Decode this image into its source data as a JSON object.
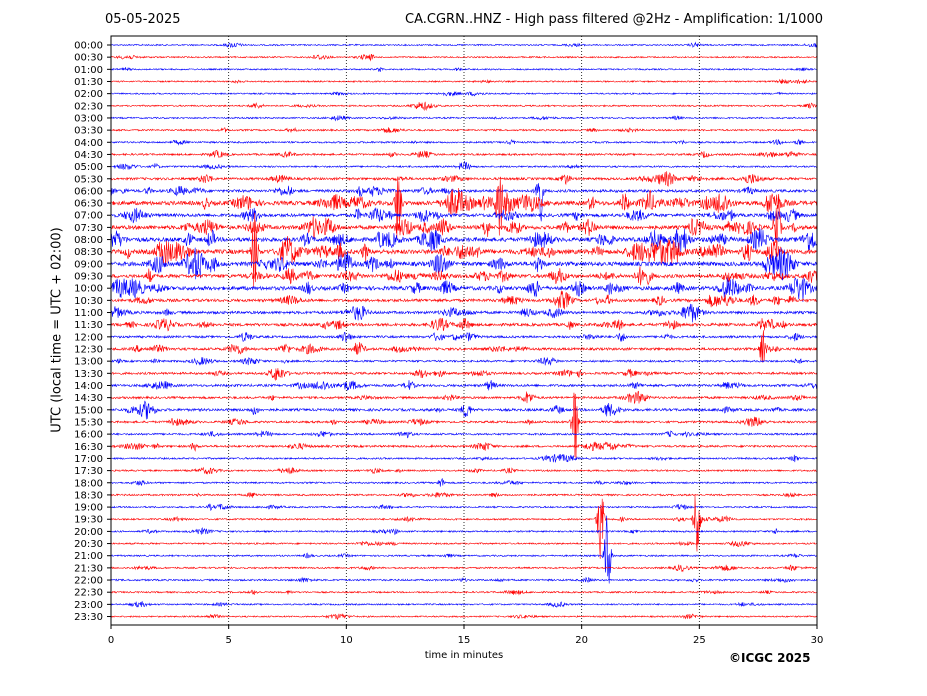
{
  "header": {
    "date": "05-05-2025",
    "title": "CA.CGRN..HNZ - High pass filtered @2Hz - Amplification: 1/1000"
  },
  "footer": {
    "copyright": "©ICGC 2025"
  },
  "colors": {
    "blue": "#0000ff",
    "red": "#ff0000",
    "grid": "#000000"
  },
  "chart_data": {
    "type": "line",
    "xlabel": "time in minutes",
    "ylabel": "UTC (local time = UTC + 02:00)",
    "xlim": [
      0,
      30
    ],
    "x_ticks": [
      0,
      5,
      10,
      15,
      20,
      25,
      30
    ],
    "vertical_grid": "dotted",
    "row_color_cycle": [
      "blue",
      "red"
    ],
    "rows": [
      {
        "time": "00:00",
        "activity": 0.05
      },
      {
        "time": "00:30",
        "activity": 0.05
      },
      {
        "time": "01:00",
        "activity": 0.06
      },
      {
        "time": "01:30",
        "activity": 0.06
      },
      {
        "time": "02:00",
        "activity": 0.06
      },
      {
        "time": "02:30",
        "activity": 0.08
      },
      {
        "time": "03:00",
        "activity": 0.08
      },
      {
        "time": "03:30",
        "activity": 0.12
      },
      {
        "time": "04:00",
        "activity": 0.15
      },
      {
        "time": "04:30",
        "activity": 0.2
      },
      {
        "time": "05:00",
        "activity": 0.15
      },
      {
        "time": "05:30",
        "activity": 0.35
      },
      {
        "time": "06:00",
        "activity": 0.45
      },
      {
        "time": "06:30",
        "activity": 0.9
      },
      {
        "time": "07:00",
        "activity": 0.6
      },
      {
        "time": "07:30",
        "activity": 0.8
      },
      {
        "time": "08:00",
        "activity": 0.9
      },
      {
        "time": "08:30",
        "activity": 1.0
      },
      {
        "time": "09:00",
        "activity": 0.9
      },
      {
        "time": "09:30",
        "activity": 0.7
      },
      {
        "time": "10:00",
        "activity": 0.8
      },
      {
        "time": "10:30",
        "activity": 0.5
      },
      {
        "time": "11:00",
        "activity": 0.45
      },
      {
        "time": "11:30",
        "activity": 0.5
      },
      {
        "time": "12:00",
        "activity": 0.3
      },
      {
        "time": "12:30",
        "activity": 0.4
      },
      {
        "time": "13:00",
        "activity": 0.2
      },
      {
        "time": "13:30",
        "activity": 0.3
      },
      {
        "time": "14:00",
        "activity": 0.35
      },
      {
        "time": "14:30",
        "activity": 0.3
      },
      {
        "time": "15:00",
        "activity": 0.4
      },
      {
        "time": "15:30",
        "activity": 0.25
      },
      {
        "time": "16:00",
        "activity": 0.2
      },
      {
        "time": "16:30",
        "activity": 0.25
      },
      {
        "time": "17:00",
        "activity": 0.15
      },
      {
        "time": "17:30",
        "activity": 0.12
      },
      {
        "time": "18:00",
        "activity": 0.12
      },
      {
        "time": "18:30",
        "activity": 0.15
      },
      {
        "time": "19:00",
        "activity": 0.1
      },
      {
        "time": "19:30",
        "activity": 0.12
      },
      {
        "time": "20:00",
        "activity": 0.12
      },
      {
        "time": "20:30",
        "activity": 0.1
      },
      {
        "time": "21:00",
        "activity": 0.1
      },
      {
        "time": "21:30",
        "activity": 0.12
      },
      {
        "time": "22:00",
        "activity": 0.15
      },
      {
        "time": "22:30",
        "activity": 0.1
      },
      {
        "time": "23:00",
        "activity": 0.08
      },
      {
        "time": "23:30",
        "activity": 0.06
      }
    ],
    "events": [
      {
        "time": "06:00",
        "minute": 18.2,
        "amplitude": 1.0
      },
      {
        "time": "06:30",
        "minute": 12.2,
        "amplitude": 0.9
      },
      {
        "time": "06:30",
        "minute": 16.5,
        "amplitude": 0.8
      },
      {
        "time": "07:30",
        "minute": 28.3,
        "amplitude": 1.0
      },
      {
        "time": "08:30",
        "minute": 6.1,
        "amplitude": 0.9
      },
      {
        "time": "15:30",
        "minute": 19.7,
        "amplitude": 1.0
      },
      {
        "time": "19:30",
        "minute": 20.8,
        "amplitude": 1.0
      },
      {
        "time": "19:30",
        "minute": 24.9,
        "amplitude": 1.0
      },
      {
        "time": "21:00",
        "minute": 21.1,
        "amplitude": 1.0
      },
      {
        "time": "12:30",
        "minute": 27.7,
        "amplitude": 0.5
      }
    ]
  }
}
